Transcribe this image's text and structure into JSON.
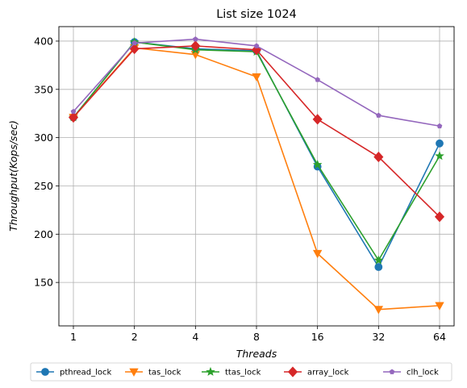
{
  "chart_data": {
    "type": "line",
    "title": "List size 1024",
    "xlabel": "Threads",
    "ylabel": "Throughput(Kops/sec)",
    "categories": [
      "1",
      "2",
      "4",
      "8",
      "16",
      "32",
      "64"
    ],
    "ylim": [
      105,
      415
    ],
    "yticks": [
      150,
      200,
      250,
      300,
      350,
      400
    ],
    "grid": true,
    "legend_position": "bottom-center",
    "series": [
      {
        "name": "pthread_lock",
        "color": "#1f77b4",
        "marker": "circle",
        "values": [
          321,
          399,
          392,
          390,
          270,
          166,
          294
        ]
      },
      {
        "name": "tas_lock",
        "color": "#ff7f0e",
        "marker": "triangle-down",
        "values": [
          321,
          393,
          386,
          363,
          180,
          122,
          126
        ]
      },
      {
        "name": "ttas_lock",
        "color": "#2ca02c",
        "marker": "star",
        "values": [
          321,
          399,
          391,
          389,
          272,
          173,
          281
        ]
      },
      {
        "name": "array_lock",
        "color": "#d62728",
        "marker": "diamond",
        "values": [
          321,
          392,
          395,
          391,
          319,
          280,
          218
        ]
      },
      {
        "name": "clh_lock",
        "color": "#9467bd",
        "marker": "pentagon",
        "values": [
          327,
          398,
          402,
          395,
          360,
          323,
          312
        ]
      }
    ]
  }
}
